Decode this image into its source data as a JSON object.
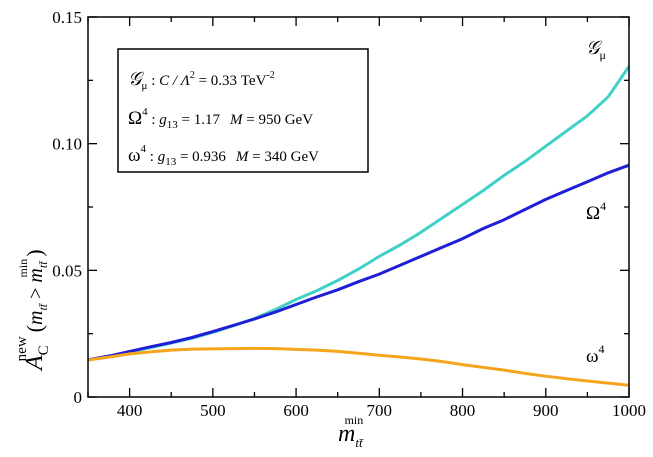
{
  "chart_data": {
    "type": "line",
    "xlim": [
      350,
      1000
    ],
    "ylim": [
      0,
      0.15
    ],
    "x_ticks": [
      400,
      500,
      600,
      700,
      800,
      900,
      1000
    ],
    "y_ticks": [
      0,
      0.05,
      0.1,
      0.15
    ],
    "x_tick_labels": [
      "400",
      "500",
      "600",
      "700",
      "800",
      "900",
      "1000"
    ],
    "y_tick_labels": [
      "0",
      "0.05",
      "0.10",
      "0.15"
    ],
    "xlabel": {
      "base": "m",
      "sub": "tt̄",
      "sup": "min"
    },
    "ylabel": {
      "base": "A",
      "sub": "C",
      "sup": "new",
      "cond_open": "(",
      "cond_m": "m",
      "cond_sub": "tt̄",
      "cond_gt": " > ",
      "cond_m2": "m",
      "cond_sub2": "tt̄",
      "cond_sup2": "min",
      "cond_close": ")"
    },
    "grid": false,
    "legend": {
      "position": "top-left",
      "rows": [
        {
          "sym": "𝒢",
          "sym_sub": "μ",
          "sep": " : ",
          "coupling": "C / Λ",
          "coupling_sup": "2",
          "eq": " = 0.33 TeV",
          "unit_sup": "-2"
        },
        {
          "sym": "Ω",
          "sym_sup": "4",
          "sep": " : ",
          "g": "g",
          "g_sub": "13",
          "g_eq": " = 1.17",
          "mass": "M",
          "mass_eq": " =  950 GeV"
        },
        {
          "sym": "ω",
          "sym_sup": "4",
          "sep": " : ",
          "g": "g",
          "g_sub": "13",
          "g_eq": " = 0.936",
          "mass": "M",
          "mass_eq": " =  340 GeV"
        }
      ]
    },
    "series_labels": [
      {
        "sym": "𝒢",
        "sub": "μ"
      },
      {
        "sym": "Ω",
        "sup": "4"
      },
      {
        "sym": "ω",
        "sup": "4"
      }
    ],
    "series": [
      {
        "id": "G_mu",
        "color": "#40d0c8",
        "x": [
          350,
          380,
          400,
          425,
          450,
          475,
          500,
          525,
          550,
          575,
          600,
          625,
          650,
          675,
          700,
          725,
          750,
          775,
          800,
          825,
          850,
          875,
          900,
          925,
          950,
          975,
          1000
        ],
        "y": [
          0.0147,
          0.0162,
          0.0178,
          0.0195,
          0.0213,
          0.0232,
          0.0255,
          0.0282,
          0.031,
          0.0345,
          0.0385,
          0.042,
          0.046,
          0.0505,
          0.0555,
          0.06,
          0.065,
          0.0705,
          0.076,
          0.0815,
          0.0875,
          0.093,
          0.099,
          0.105,
          0.111,
          0.1185,
          0.1305
        ]
      },
      {
        "id": "Omega4",
        "color": "#1f1fd8",
        "x": [
          350,
          380,
          400,
          425,
          450,
          475,
          500,
          525,
          550,
          575,
          600,
          625,
          650,
          675,
          700,
          725,
          750,
          775,
          800,
          825,
          850,
          875,
          900,
          925,
          950,
          975,
          1000
        ],
        "y": [
          0.0147,
          0.0165,
          0.018,
          0.0198,
          0.0215,
          0.0235,
          0.0258,
          0.0283,
          0.0308,
          0.0335,
          0.0365,
          0.0395,
          0.0423,
          0.0455,
          0.0485,
          0.052,
          0.0555,
          0.059,
          0.0625,
          0.0665,
          0.07,
          0.074,
          0.078,
          0.0815,
          0.085,
          0.0885,
          0.0915
        ]
      },
      {
        "id": "omega4",
        "color": "#f5a41c",
        "x": [
          350,
          380,
          400,
          425,
          450,
          475,
          500,
          525,
          550,
          575,
          600,
          625,
          650,
          675,
          700,
          725,
          750,
          775,
          800,
          825,
          850,
          875,
          900,
          925,
          950,
          975,
          1000
        ],
        "y": [
          0.0146,
          0.016,
          0.017,
          0.0178,
          0.0185,
          0.0189,
          0.019,
          0.0191,
          0.0192,
          0.0191,
          0.0188,
          0.0185,
          0.018,
          0.0173,
          0.0165,
          0.0158,
          0.015,
          0.014,
          0.0128,
          0.0117,
          0.0106,
          0.0093,
          0.0082,
          0.0072,
          0.0063,
          0.0055,
          0.0046
        ]
      }
    ]
  }
}
